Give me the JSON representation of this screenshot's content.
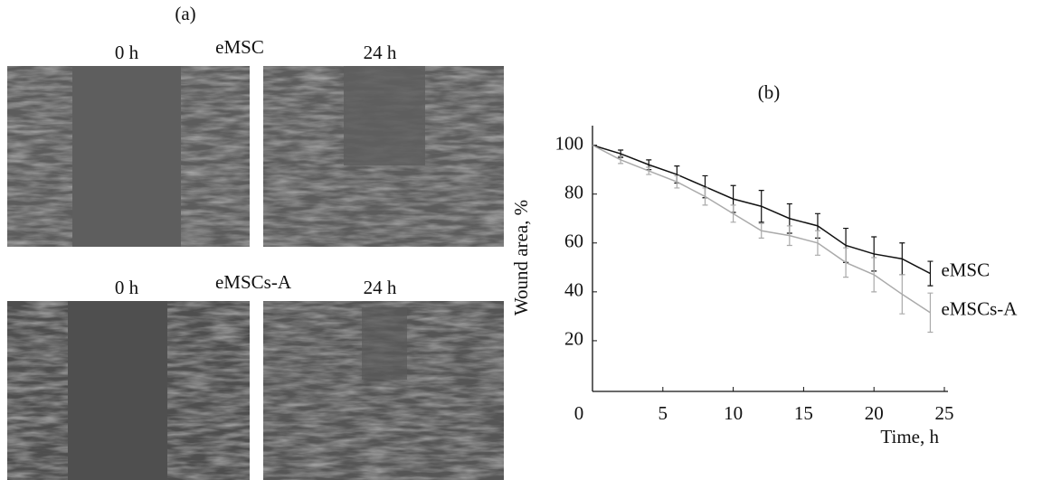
{
  "panel_a": {
    "label": "(a)",
    "rows": [
      {
        "name": "eMSC",
        "left": "0 h",
        "right": "24 h"
      },
      {
        "name": "eMSCs-A",
        "left": "0 h",
        "right": "24 h"
      }
    ]
  },
  "chart_data": {
    "type": "line",
    "title": "(b)",
    "x_label": "Time, h",
    "y_label": "Wound area, %",
    "x": [
      0,
      2,
      4,
      6,
      8,
      10,
      12,
      14,
      16,
      18,
      20,
      22,
      24
    ],
    "series": [
      {
        "name": "eMSC",
        "color": "#111111",
        "values": [
          100,
          96.5,
          92,
          88,
          83,
          78,
          75,
          70,
          67,
          59,
          55.5,
          53.5,
          47.5
        ],
        "errors": [
          0,
          1.5,
          2,
          3.5,
          4.5,
          5.5,
          6.5,
          6,
          5,
          7,
          7,
          6.5,
          5
        ]
      },
      {
        "name": "eMSCs-A",
        "color": "#aaaaaa",
        "values": [
          100,
          94,
          89.5,
          85,
          79,
          72,
          65,
          63,
          60,
          52,
          47,
          39,
          31.5
        ],
        "errors": [
          0,
          1.5,
          1.5,
          2.5,
          3.5,
          3.5,
          3,
          4,
          5,
          6,
          7,
          8,
          8
        ]
      }
    ],
    "xlim": [
      0,
      25
    ],
    "ylim": [
      0,
      108
    ],
    "xticks": [
      0,
      5,
      10,
      15,
      20,
      25
    ],
    "yticks": [
      20,
      40,
      60,
      80,
      100
    ]
  }
}
